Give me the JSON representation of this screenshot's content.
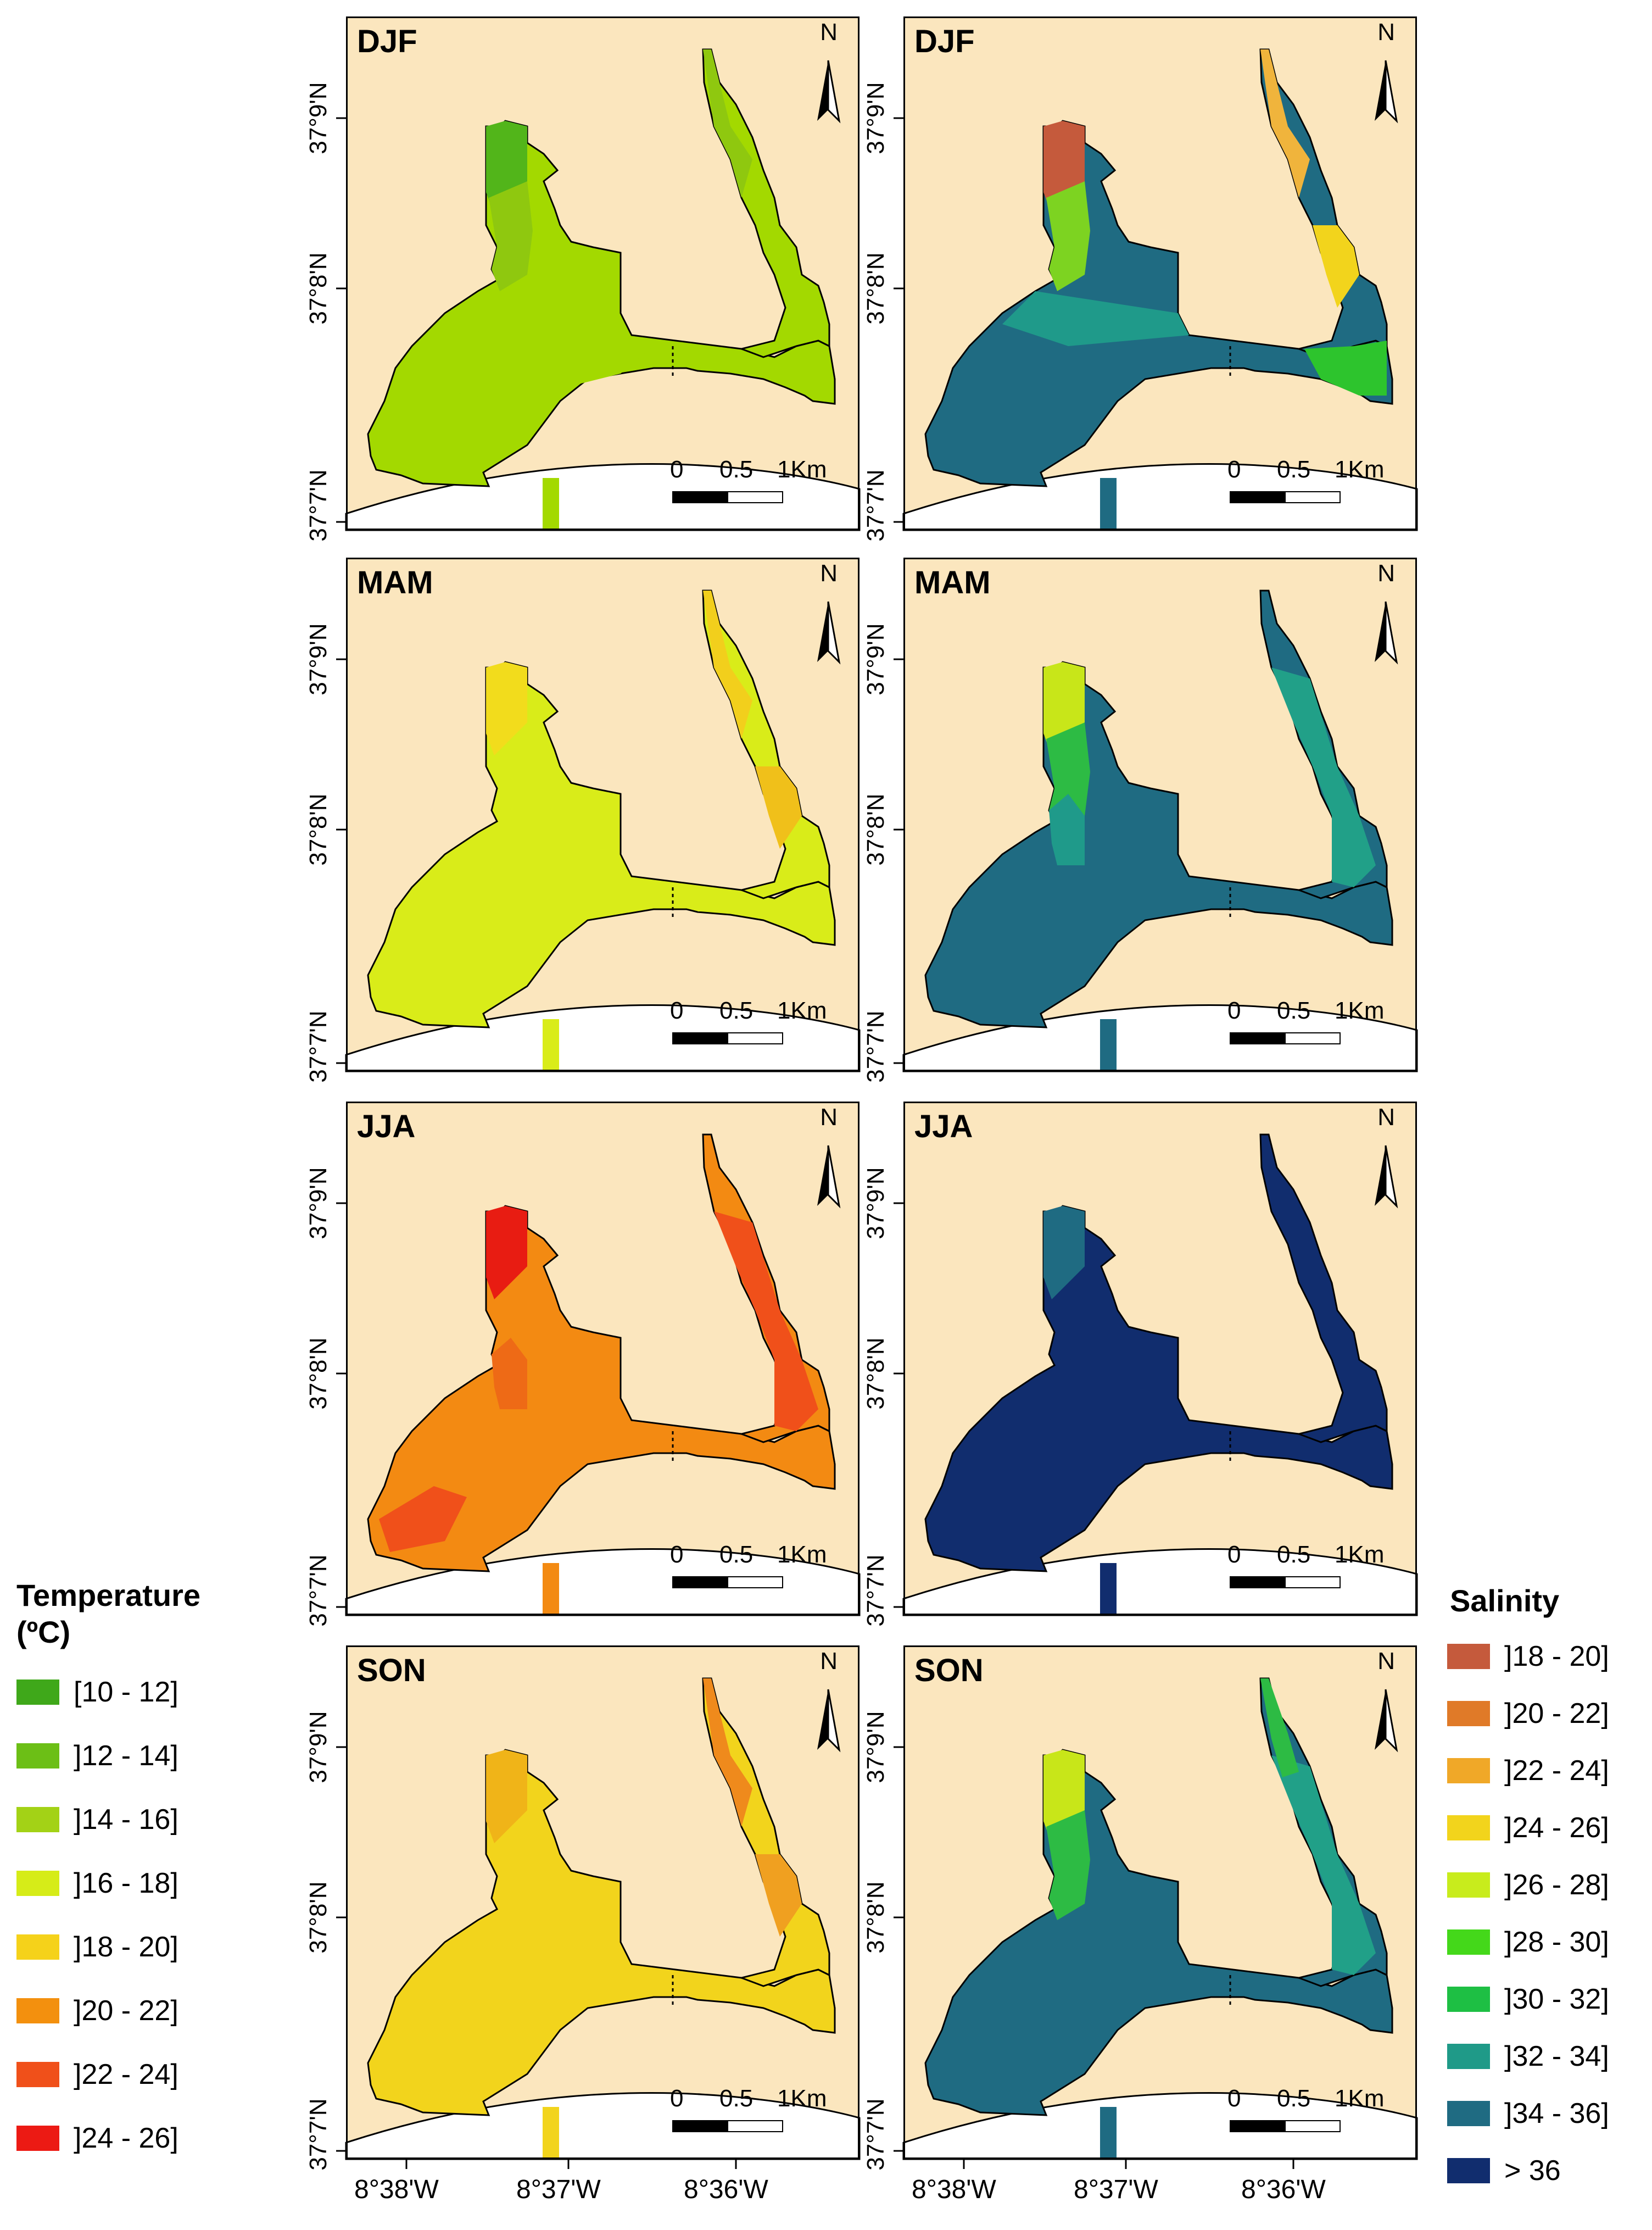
{
  "panels": [
    {
      "season": "DJF",
      "variable": "temperature",
      "fill": "#a3d900",
      "patches": [
        {
          "id": "upper-left",
          "color": "#52b51a"
        },
        {
          "id": "mid-left",
          "color": "#8fc80f"
        },
        {
          "id": "upper-right",
          "color": "#8fc80f"
        },
        {
          "id": "basin",
          "color": "#a3d900"
        }
      ]
    },
    {
      "season": "DJF",
      "variable": "salinity",
      "fill": "#1f6b82",
      "patches": [
        {
          "id": "upper-left",
          "color": "#c55a3c"
        },
        {
          "id": "mid-left",
          "color": "#7dd321"
        },
        {
          "id": "upper-right",
          "color": "#f0b43c"
        },
        {
          "id": "right-mid",
          "color": "#f2d41c"
        },
        {
          "id": "basin-top",
          "color": "#1f9a8a"
        },
        {
          "id": "right-channel",
          "color": "#2dc42d"
        }
      ]
    },
    {
      "season": "MAM",
      "variable": "temperature",
      "fill": "#d9ec19",
      "patches": [
        {
          "id": "upper-left",
          "color": "#f2dc1c"
        },
        {
          "id": "upper-right",
          "color": "#f2cf1c"
        },
        {
          "id": "right-mid",
          "color": "#f0c01a"
        }
      ]
    },
    {
      "season": "MAM",
      "variable": "salinity",
      "fill": "#1f6b82",
      "patches": [
        {
          "id": "upper-left",
          "color": "#c8e619"
        },
        {
          "id": "mid-left",
          "color": "#2dbb44"
        },
        {
          "id": "right-arm",
          "color": "#21a088"
        },
        {
          "id": "left-arm",
          "color": "#1f9a8a"
        }
      ]
    },
    {
      "season": "JJA",
      "variable": "temperature",
      "fill": "#f38a12",
      "patches": [
        {
          "id": "upper-left",
          "color": "#e81c12"
        },
        {
          "id": "right-arm",
          "color": "#f0501a"
        },
        {
          "id": "basin-left",
          "color": "#f0501a"
        },
        {
          "id": "left-arm",
          "color": "#ee6a16"
        }
      ]
    },
    {
      "season": "JJA",
      "variable": "salinity",
      "fill": "#112d6e",
      "patches": [
        {
          "id": "upper-left",
          "color": "#1f6b82"
        }
      ]
    },
    {
      "season": "SON",
      "variable": "temperature",
      "fill": "#f2d41c",
      "patches": [
        {
          "id": "upper-left",
          "color": "#f0b418"
        },
        {
          "id": "upper-right",
          "color": "#ef8a1c"
        },
        {
          "id": "right-mid",
          "color": "#f0a020"
        }
      ]
    },
    {
      "season": "SON",
      "variable": "salinity",
      "fill": "#1f6b82",
      "patches": [
        {
          "id": "upper-left",
          "color": "#c8e619"
        },
        {
          "id": "mid-left",
          "color": "#2dbb44"
        },
        {
          "id": "right-arm",
          "color": "#21a088"
        },
        {
          "id": "right-upper",
          "color": "#2dbb44"
        }
      ]
    }
  ],
  "north_label": "N",
  "scale": {
    "labels": [
      "0",
      "0.5",
      "1Km"
    ]
  },
  "lat_labels": [
    "37°9'N",
    "37°8'N",
    "37°7'N"
  ],
  "lon_labels": [
    "8°38'W",
    "8°37'W",
    "8°36'W"
  ],
  "land_color": "#fbe6be",
  "sea_color": "#ffffff",
  "temperature_legend": {
    "title_line1": "Temperature",
    "title_line2": "(ºC)",
    "items": [
      {
        "label": "[10 - 12]",
        "color": "#3fa81a"
      },
      {
        "label": "]12 - 14]",
        "color": "#6cbf16"
      },
      {
        "label": "]14 - 16]",
        "color": "#a3d216"
      },
      {
        "label": "]16 - 18]",
        "color": "#d6ec18"
      },
      {
        "label": "]18 - 20]",
        "color": "#f5d21a"
      },
      {
        "label": "]20 - 22]",
        "color": "#f3900e"
      },
      {
        "label": "]22 - 24]",
        "color": "#f0501a"
      },
      {
        "label": "]24 - 26]",
        "color": "#ec1a14"
      }
    ]
  },
  "salinity_legend": {
    "title": "Salinity",
    "items": [
      {
        "label": "]18 - 20]",
        "color": "#c55a3c"
      },
      {
        "label": "]20 - 22]",
        "color": "#e07a28"
      },
      {
        "label": "]22 - 24]",
        "color": "#f0a828"
      },
      {
        "label": "]24 - 26]",
        "color": "#f2d41c"
      },
      {
        "label": "]26 - 28]",
        "color": "#c8ec1c"
      },
      {
        "label": "]28 - 30]",
        "color": "#44d81a"
      },
      {
        "label": "]30 - 32]",
        "color": "#1ebf44"
      },
      {
        "label": "]32 - 34]",
        "color": "#1f9a88"
      },
      {
        "label": "]34 - 36]",
        "color": "#1f6b82"
      },
      {
        "label": "> 36",
        "color": "#112d6e"
      }
    ]
  }
}
